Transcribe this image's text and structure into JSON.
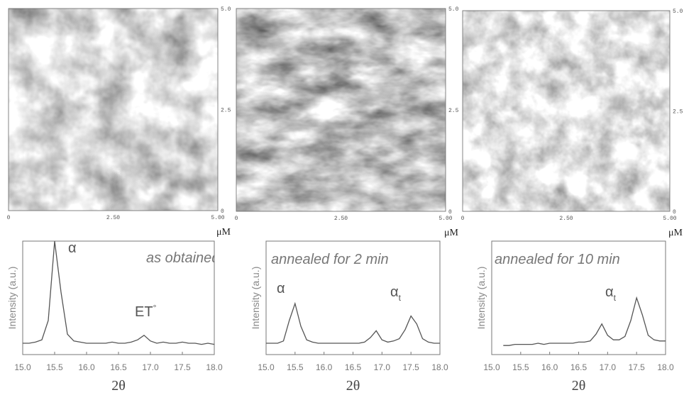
{
  "afm_images": [
    {
      "x_ticks": [
        "0",
        "2.50",
        "5.00"
      ],
      "y_ticks": [
        "0",
        "2.5",
        "5.0"
      ],
      "unit": "μM"
    },
    {
      "x_ticks": [
        "0",
        "2.50",
        "5.00"
      ],
      "y_ticks": [
        "0",
        "2.5",
        "5.0"
      ],
      "unit": "μM"
    },
    {
      "x_ticks": [
        "0",
        "2.50",
        "5.00"
      ],
      "y_ticks": [
        "0",
        "2.5",
        "5.0"
      ],
      "unit": "μM"
    }
  ],
  "chart_data": [
    {
      "type": "line",
      "title": "as obtained",
      "x_label": "2θ",
      "y_label": "Intensity (a.u.)",
      "x": [
        15.0,
        15.1,
        15.2,
        15.3,
        15.4,
        15.5,
        15.6,
        15.7,
        15.8,
        15.9,
        16.0,
        16.1,
        16.2,
        16.3,
        16.4,
        16.5,
        16.6,
        16.7,
        16.8,
        16.9,
        17.0,
        17.1,
        17.2,
        17.3,
        17.4,
        17.5,
        17.6,
        17.7,
        17.8,
        17.9,
        18.0
      ],
      "series": [
        {
          "color": "#555555",
          "values": [
            10,
            10,
            11,
            13,
            30,
            100,
            55,
            18,
            12,
            11,
            10,
            10,
            10,
            10,
            11,
            10,
            10,
            11,
            13,
            17,
            12,
            10,
            11,
            10,
            10,
            11,
            10,
            10,
            9,
            10,
            9
          ]
        }
      ],
      "annotations": [
        {
          "text": "α"
        },
        {
          "text": "ET",
          "sup": "°"
        }
      ],
      "xlim": [
        15,
        18
      ],
      "ylim": [
        0,
        100
      ],
      "xticks": [
        {
          "value": 15,
          "label": "15.0"
        },
        15.5,
        {
          "value": 16,
          "label": "16.0"
        },
        16.5,
        {
          "value": 17,
          "label": "17.0"
        },
        17.5,
        {
          "value": 18,
          "label": "18.0"
        }
      ]
    },
    {
      "type": "line",
      "title": "annealed for 2 min",
      "x_label": "2θ",
      "y_label": "Intensity (a.u.)",
      "x": [
        15.0,
        15.1,
        15.2,
        15.3,
        15.4,
        15.5,
        15.6,
        15.7,
        15.8,
        15.9,
        16.0,
        16.1,
        16.2,
        16.3,
        16.4,
        16.5,
        16.6,
        16.7,
        16.8,
        16.9,
        17.0,
        17.1,
        17.2,
        17.3,
        17.4,
        17.5,
        17.6,
        17.7,
        17.8,
        17.9,
        18.0
      ],
      "series": [
        {
          "color": "#555555",
          "values": [
            10,
            10,
            10,
            12,
            30,
            45,
            25,
            13,
            11,
            10,
            10,
            10,
            10,
            10,
            10,
            10,
            10,
            11,
            15,
            21,
            13,
            11,
            12,
            14,
            22,
            34,
            27,
            14,
            11,
            10,
            10
          ]
        }
      ],
      "annotations": [
        {
          "text": "α"
        },
        {
          "text": "α",
          "sub": "t"
        }
      ],
      "xlim": [
        15,
        18
      ],
      "ylim": [
        0,
        100
      ],
      "xticks": [
        {
          "value": 15,
          "label": "15.0"
        },
        15.5,
        {
          "value": 16,
          "label": "16.0"
        },
        16.5,
        {
          "value": 17,
          "label": "17.0"
        },
        17.5,
        {
          "value": 18,
          "label": "18.0"
        }
      ]
    },
    {
      "type": "line",
      "title": "annealed for 10 min",
      "x_label": "2θ",
      "y_label": "Intensity (a.u.)",
      "x": [
        15.0,
        15.1,
        15.2,
        15.3,
        15.4,
        15.5,
        15.6,
        15.7,
        15.8,
        15.9,
        16.0,
        16.1,
        16.2,
        16.3,
        16.4,
        16.5,
        16.6,
        16.7,
        16.8,
        16.9,
        17.0,
        17.1,
        17.2,
        17.3,
        17.4,
        17.5,
        17.6,
        17.7,
        17.8,
        17.9,
        18.0
      ],
      "series": [
        {
          "color": "#555555",
          "values": [
            null,
            null,
            8,
            8,
            9,
            9,
            9,
            9,
            10,
            9,
            10,
            10,
            10,
            10,
            10,
            11,
            11,
            12,
            18,
            27,
            17,
            13,
            13,
            16,
            30,
            50,
            35,
            17,
            13,
            12,
            12
          ]
        }
      ],
      "annotations": [
        {
          "text": "α",
          "sub": "t"
        }
      ],
      "xlim": [
        15,
        18
      ],
      "ylim": [
        0,
        100
      ],
      "xticks": [
        {
          "value": 15,
          "label": "15.0"
        },
        15.5,
        {
          "value": 16,
          "label": "16.0"
        },
        16.5,
        {
          "value": 17,
          "label": "17.0"
        },
        17.5,
        {
          "value": 18,
          "label": "18.0"
        }
      ]
    }
  ]
}
